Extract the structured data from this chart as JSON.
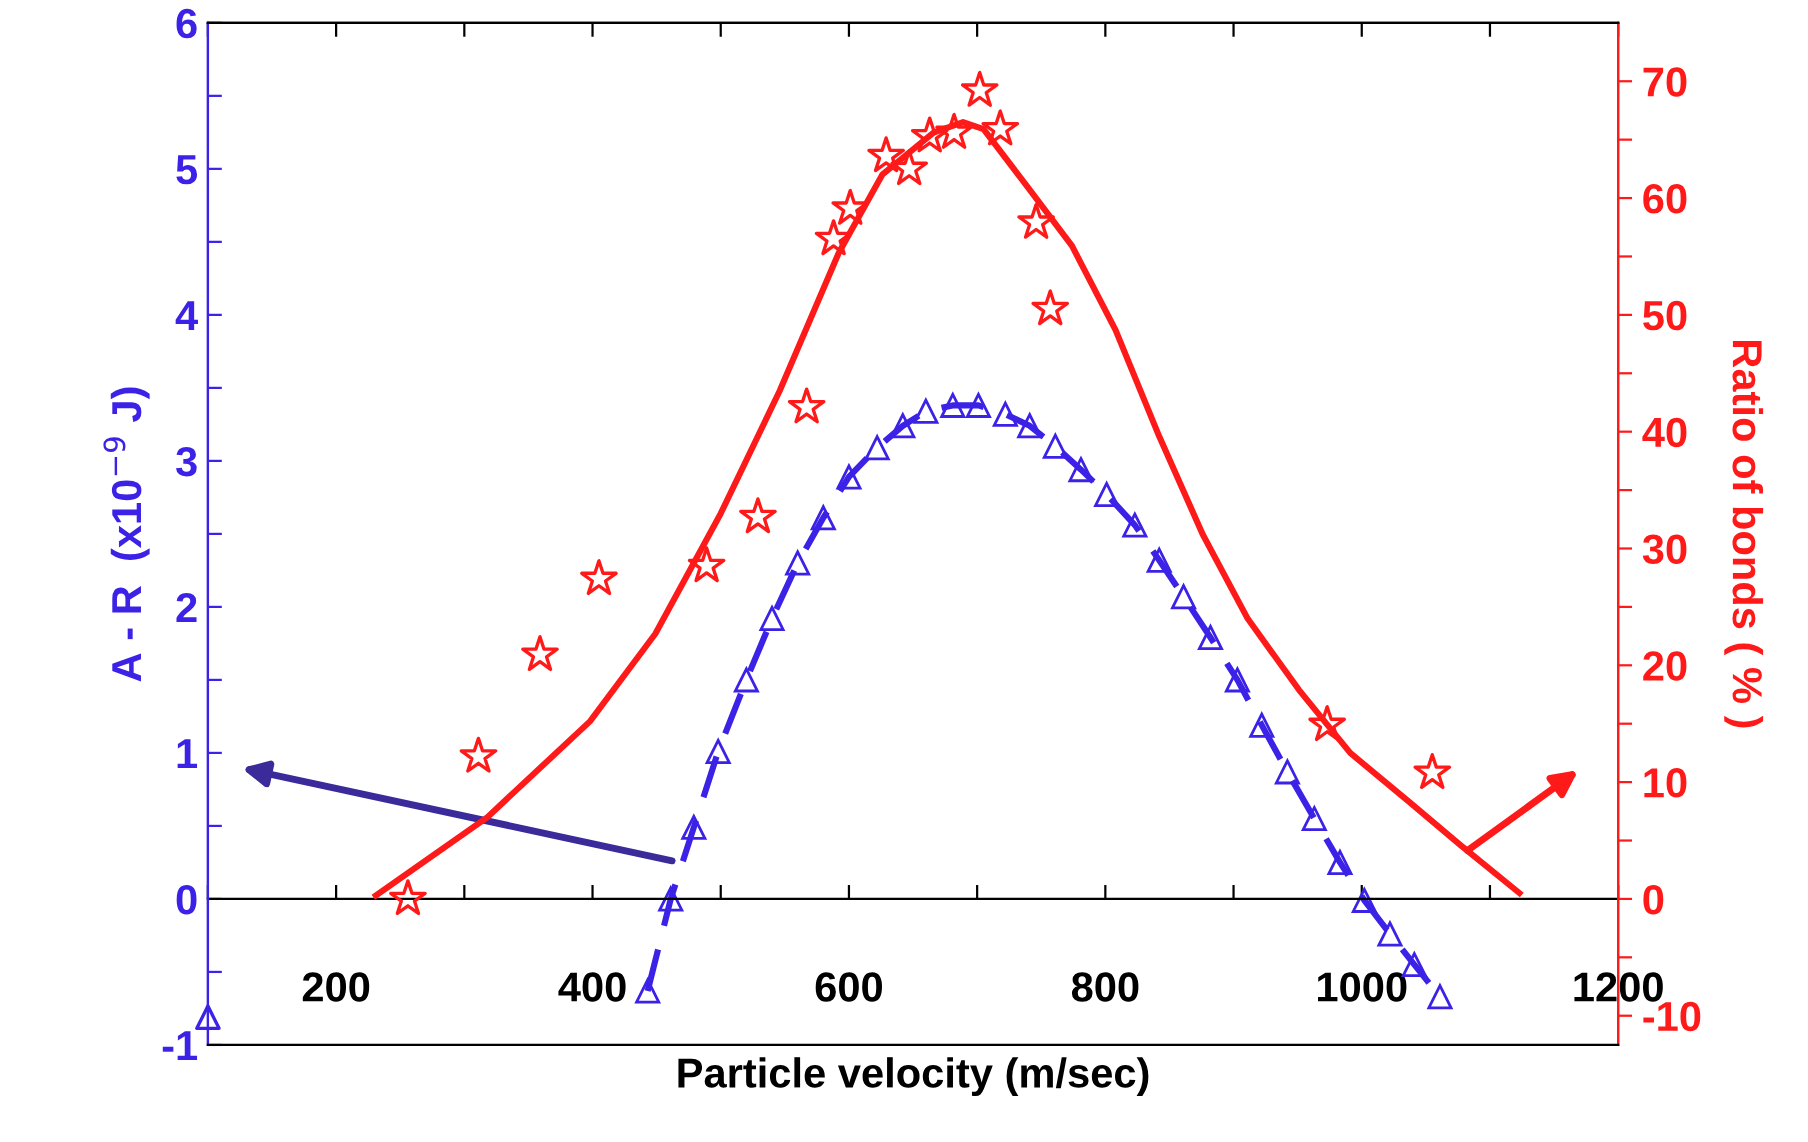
{
  "chart_data": {
    "type": "line",
    "xlabel": "Particle velocity (m/sec)",
    "ylabel": "A - R  (x10$^{−9}$ J)",
    "y2label": "Ratio of bonds ( % )",
    "xlim": [
      100,
      1200
    ],
    "xticks": [
      {
        "value": 100,
        "label": null
      },
      200,
      {
        "value": 300,
        "label": null
      },
      400,
      {
        "value": 500,
        "label": null
      },
      600,
      {
        "value": 700,
        "label": null
      },
      800,
      {
        "value": 900,
        "label": null
      },
      1000,
      {
        "value": 1100,
        "label": null
      },
      1200
    ],
    "ylim": [
      -1,
      6
    ],
    "yticks": [
      -1,
      {
        "value": -0.5,
        "label": null
      },
      0,
      {
        "value": 0.5,
        "label": null
      },
      1,
      {
        "value": 1.5,
        "label": null
      },
      2,
      {
        "value": 2.5,
        "label": null
      },
      3,
      {
        "value": 3.5,
        "label": null
      },
      4,
      {
        "value": 4.5,
        "label": null
      },
      5,
      {
        "value": 5.5,
        "label": null
      },
      6
    ],
    "y2lim": [
      -12.5,
      75
    ],
    "y2ticks": [
      -10,
      {
        "value": -5,
        "label": null
      },
      0,
      {
        "value": 5,
        "label": null
      },
      10,
      {
        "value": 15,
        "label": null
      },
      20,
      {
        "value": 25,
        "label": null
      },
      30,
      {
        "value": 35,
        "label": null
      },
      40,
      {
        "value": 45,
        "label": null
      },
      50,
      {
        "value": 55,
        "label": null
      },
      60,
      {
        "value": 65,
        "label": null
      },
      70
    ],
    "legend": false,
    "series": [
      {
        "color": "#3b22e6",
        "marker": "triangle",
        "line_style": "dashed",
        "x": [
          443,
          461,
          479,
          498,
          520,
          540,
          560,
          580,
          600,
          622,
          642,
          660,
          681,
          701,
          722,
          741,
          761,
          781,
          801,
          823,
          842,
          861,
          882,
          903,
          922,
          942,
          963,
          983,
          1002,
          1022,
          1041,
          1061
        ],
        "values": [
          -0.63,
          0,
          0.49,
          1.01,
          1.5,
          1.92,
          2.3,
          2.61,
          2.89,
          3.09,
          3.24,
          3.34,
          3.38,
          3.38,
          3.32,
          3.24,
          3.1,
          2.94,
          2.77,
          2.56,
          2.32,
          2.07,
          1.79,
          1.5,
          1.19,
          0.87,
          0.55,
          0.25,
          -0.01,
          -0.24,
          -0.45,
          -0.67
        ]
      },
      {
        "type": "scatter",
        "color": "#3b22e6",
        "marker": "triangle",
        "x": [
          100
        ],
        "values": [
          -0.81
        ]
      },
      {
        "type": "scatter",
        "color": "#ff1a1a",
        "marker": "star",
        "axis": "y2",
        "x": [
          256,
          311,
          359,
          405,
          489,
          529,
          567,
          588,
          601,
          629,
          647,
          663,
          682,
          702,
          718,
          746,
          757,
          973,
          1055
        ],
        "values": [
          0,
          12.2,
          20.9,
          27.4,
          28.5,
          32.7,
          42.1,
          56.5,
          59.1,
          63.6,
          62.5,
          65.3,
          65.6,
          69.2,
          65.9,
          57.9,
          50.5,
          14.9,
          10.8
        ]
      },
      {
        "color": "#ff1a1a",
        "marker": "none",
        "line_style": "solid",
        "axis": "y2",
        "x": [
          231,
          318,
          398,
          449,
          500,
          546,
          592,
          626,
          666,
          689,
          705,
          739,
          774,
          808,
          842,
          876,
          911,
          951,
          991,
          1037,
          1077,
          1123
        ],
        "values": [
          0.3,
          7,
          15.2,
          22.7,
          33,
          43.5,
          55.3,
          62,
          65.6,
          66.5,
          65.9,
          61,
          55.9,
          48.7,
          39.6,
          31.2,
          24,
          17.9,
          12.5,
          8.3,
          4.6,
          0.5
        ]
      }
    ]
  }
}
